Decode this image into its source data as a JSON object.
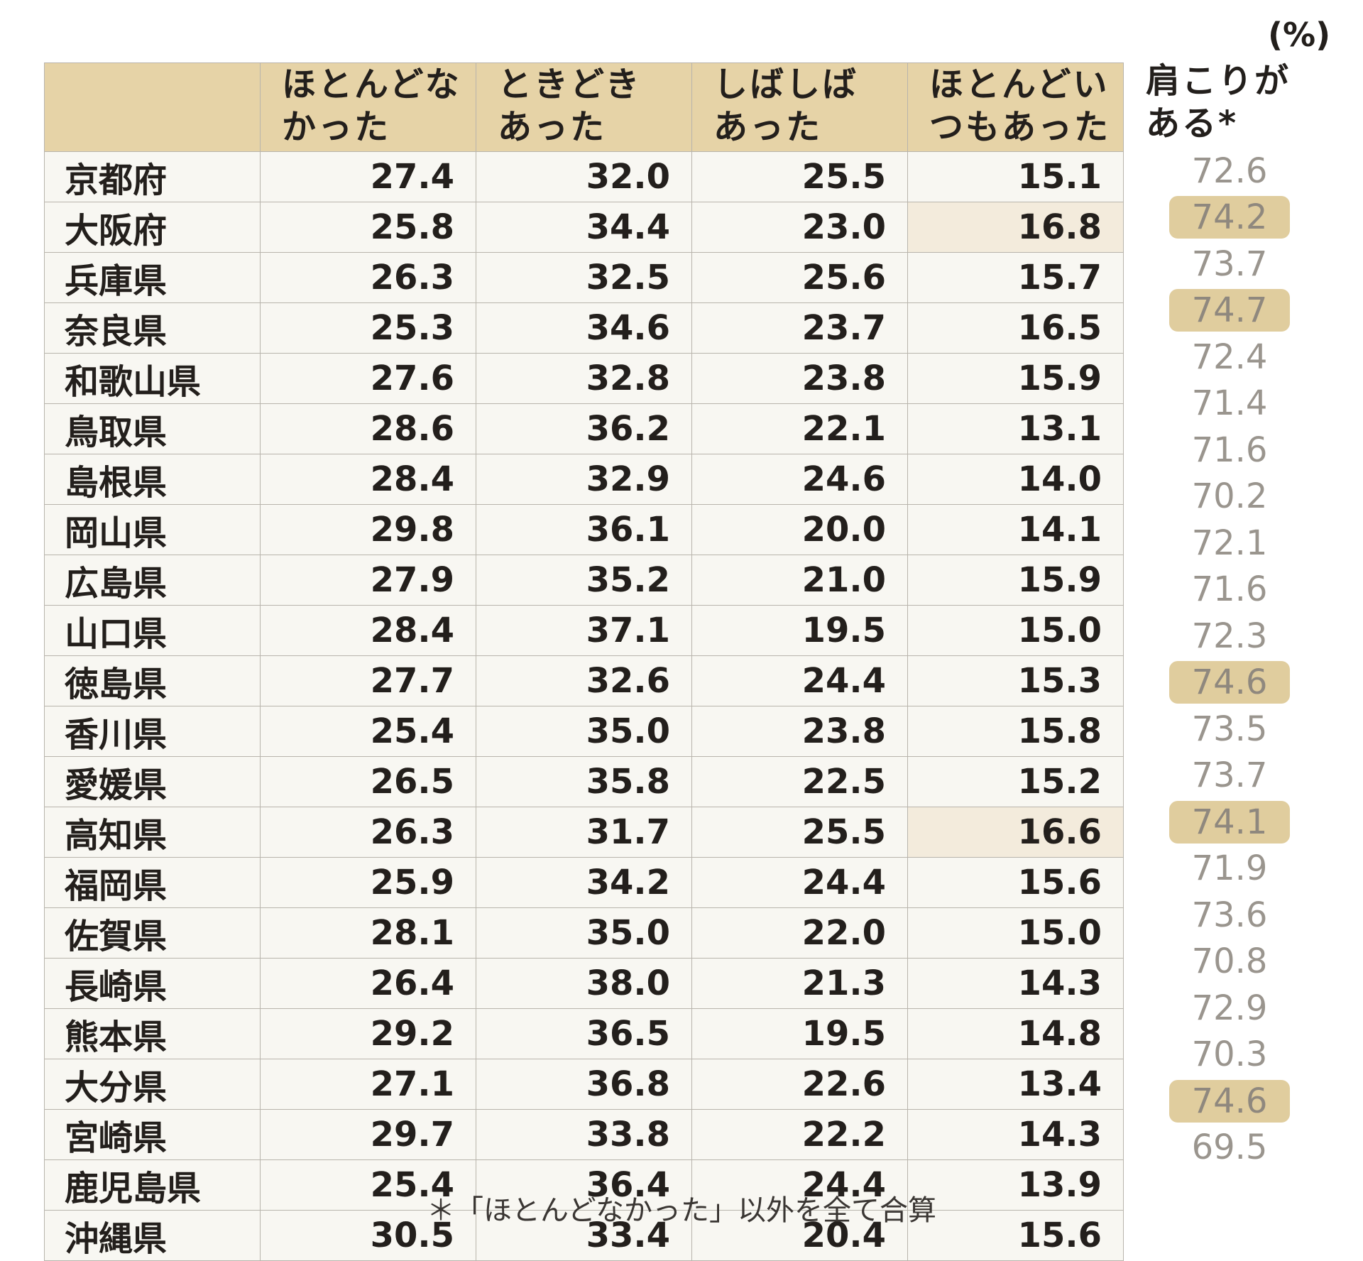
{
  "unit_label": "(%)",
  "footnote": "＊「ほとんどなかった」以外を全て合算",
  "colors": {
    "header_bg": "#e6d3a7",
    "cell_bg": "#f8f7f2",
    "cell_highlight_bg": "#f3ebdc",
    "total_highlight_bg": "#e0cd9e",
    "total_text": "#9a958e"
  },
  "chart_data": {
    "type": "table",
    "columns": [
      {
        "line1": "",
        "line2": ""
      },
      {
        "line1": "ほとんどな",
        "line2": "かった"
      },
      {
        "line1": "ときどき",
        "line2": "あった"
      },
      {
        "line1": "しばしば",
        "line2": "あった"
      },
      {
        "line1": "ほとんどい",
        "line2": "つもあった"
      }
    ],
    "total_column": {
      "line1": "肩こりが",
      "line2": "ある*"
    },
    "rows": [
      {
        "pref": "京都府",
        "v": [
          "27.4",
          "32.0",
          "25.5",
          "15.1"
        ],
        "total": "72.6",
        "hl4": false,
        "hl_total": false
      },
      {
        "pref": "大阪府",
        "v": [
          "25.8",
          "34.4",
          "23.0",
          "16.8"
        ],
        "total": "74.2",
        "hl4": true,
        "hl_total": true
      },
      {
        "pref": "兵庫県",
        "v": [
          "26.3",
          "32.5",
          "25.6",
          "15.7"
        ],
        "total": "73.7",
        "hl4": false,
        "hl_total": false
      },
      {
        "pref": "奈良県",
        "v": [
          "25.3",
          "34.6",
          "23.7",
          "16.5"
        ],
        "total": "74.7",
        "hl4": false,
        "hl_total": true
      },
      {
        "pref": "和歌山県",
        "v": [
          "27.6",
          "32.8",
          "23.8",
          "15.9"
        ],
        "total": "72.4",
        "hl4": false,
        "hl_total": false
      },
      {
        "pref": "鳥取県",
        "v": [
          "28.6",
          "36.2",
          "22.1",
          "13.1"
        ],
        "total": "71.4",
        "hl4": false,
        "hl_total": false
      },
      {
        "pref": "島根県",
        "v": [
          "28.4",
          "32.9",
          "24.6",
          "14.0"
        ],
        "total": "71.6",
        "hl4": false,
        "hl_total": false
      },
      {
        "pref": "岡山県",
        "v": [
          "29.8",
          "36.1",
          "20.0",
          "14.1"
        ],
        "total": "70.2",
        "hl4": false,
        "hl_total": false
      },
      {
        "pref": "広島県",
        "v": [
          "27.9",
          "35.2",
          "21.0",
          "15.9"
        ],
        "total": "72.1",
        "hl4": false,
        "hl_total": false
      },
      {
        "pref": "山口県",
        "v": [
          "28.4",
          "37.1",
          "19.5",
          "15.0"
        ],
        "total": "71.6",
        "hl4": false,
        "hl_total": false
      },
      {
        "pref": "徳島県",
        "v": [
          "27.7",
          "32.6",
          "24.4",
          "15.3"
        ],
        "total": "72.3",
        "hl4": false,
        "hl_total": false
      },
      {
        "pref": "香川県",
        "v": [
          "25.4",
          "35.0",
          "23.8",
          "15.8"
        ],
        "total": "74.6",
        "hl4": false,
        "hl_total": true
      },
      {
        "pref": "愛媛県",
        "v": [
          "26.5",
          "35.8",
          "22.5",
          "15.2"
        ],
        "total": "73.5",
        "hl4": false,
        "hl_total": false
      },
      {
        "pref": "高知県",
        "v": [
          "26.3",
          "31.7",
          "25.5",
          "16.6"
        ],
        "total": "73.7",
        "hl4": true,
        "hl_total": false
      },
      {
        "pref": "福岡県",
        "v": [
          "25.9",
          "34.2",
          "24.4",
          "15.6"
        ],
        "total": "74.1",
        "hl4": false,
        "hl_total": true
      },
      {
        "pref": "佐賀県",
        "v": [
          "28.1",
          "35.0",
          "22.0",
          "15.0"
        ],
        "total": "71.9",
        "hl4": false,
        "hl_total": false
      },
      {
        "pref": "長崎県",
        "v": [
          "26.4",
          "38.0",
          "21.3",
          "14.3"
        ],
        "total": "73.6",
        "hl4": false,
        "hl_total": false
      },
      {
        "pref": "熊本県",
        "v": [
          "29.2",
          "36.5",
          "19.5",
          "14.8"
        ],
        "total": "70.8",
        "hl4": false,
        "hl_total": false
      },
      {
        "pref": "大分県",
        "v": [
          "27.1",
          "36.8",
          "22.6",
          "13.4"
        ],
        "total": "72.9",
        "hl4": false,
        "hl_total": false
      },
      {
        "pref": "宮崎県",
        "v": [
          "29.7",
          "33.8",
          "22.2",
          "14.3"
        ],
        "total": "70.3",
        "hl4": false,
        "hl_total": false
      },
      {
        "pref": "鹿児島県",
        "v": [
          "25.4",
          "36.4",
          "24.4",
          "13.9"
        ],
        "total": "74.6",
        "hl4": false,
        "hl_total": true
      },
      {
        "pref": "沖縄県",
        "v": [
          "30.5",
          "33.4",
          "20.4",
          "15.6"
        ],
        "total": "69.5",
        "hl4": false,
        "hl_total": false
      }
    ]
  }
}
